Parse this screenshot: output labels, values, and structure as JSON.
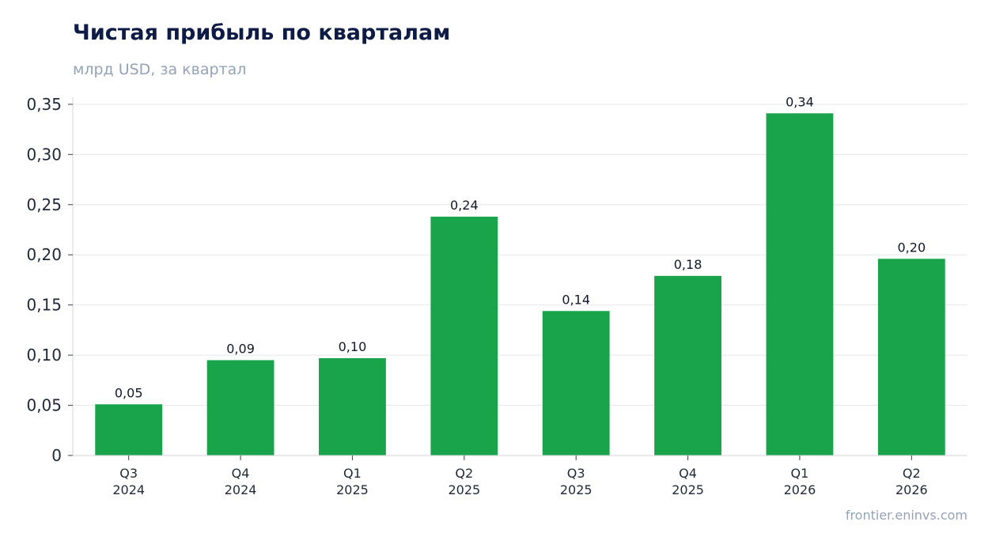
{
  "title": "Чистая прибыль по кварталам",
  "subtitle": "млрд USD, за квартал",
  "source": "frontier.eninvs.com",
  "colors": {
    "bar": "#19a34a",
    "grid": "#e5e7eb",
    "axis": "#d1d5db"
  },
  "chart_data": {
    "type": "bar",
    "title": "Чистая прибыль по кварталам",
    "subtitle": "млрд USD, за квартал",
    "xlabel": "",
    "ylabel": "",
    "categories": [
      [
        "Q3",
        "2024"
      ],
      [
        "Q4",
        "2024"
      ],
      [
        "Q1",
        "2025"
      ],
      [
        "Q2",
        "2025"
      ],
      [
        "Q3",
        "2025"
      ],
      [
        "Q4",
        "2025"
      ],
      [
        "Q1",
        "2026"
      ],
      [
        "Q2",
        "2026"
      ]
    ],
    "values": [
      0.051,
      0.095,
      0.097,
      0.238,
      0.144,
      0.179,
      0.341,
      0.196
    ],
    "data_labels": [
      "0,05",
      "0,09",
      "0,10",
      "0,24",
      "0,14",
      "0,18",
      "0,34",
      "0,20"
    ],
    "y_ticks": [
      0,
      0.05,
      0.1,
      0.15,
      0.2,
      0.25,
      0.3,
      0.35
    ],
    "y_tick_labels": [
      "0",
      "0,05",
      "0,10",
      "0,15",
      "0,20",
      "0,25",
      "0,30",
      "0,35"
    ],
    "ylim": [
      0,
      0.357
    ],
    "grid": true,
    "legend": "none"
  }
}
